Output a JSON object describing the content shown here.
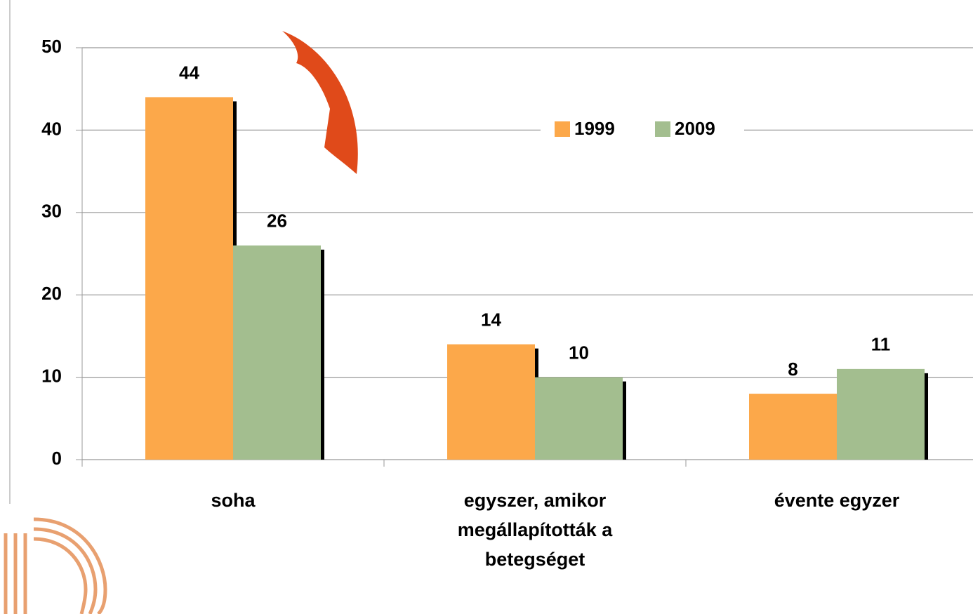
{
  "chart_data": {
    "type": "bar",
    "categories": [
      "soha",
      "egyszer, amikor megállapították a betegséget",
      "évente egyzer"
    ],
    "series": [
      {
        "name": "1999",
        "color": "#fca84a",
        "values": [
          44,
          14,
          8
        ]
      },
      {
        "name": "2009",
        "color": "#a3be8f",
        "values": [
          26,
          10,
          11
        ]
      }
    ],
    "ylim": [
      0,
      50
    ],
    "yticks": [
      0,
      10,
      20,
      30,
      40,
      50
    ],
    "grid": true
  }
}
